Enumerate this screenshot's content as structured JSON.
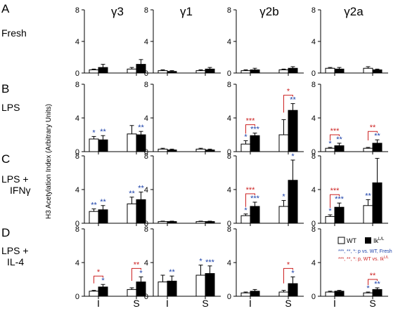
{
  "columns": [
    "γ3",
    "γ1",
    "γ2b",
    "γ2a"
  ],
  "rows": [
    {
      "letter": "A",
      "label": [
        "Fresh"
      ]
    },
    {
      "letter": "B",
      "label": [
        "LPS"
      ]
    },
    {
      "letter": "C",
      "label": [
        "LPS +",
        "IFNγ"
      ]
    },
    {
      "letter": "D",
      "label": [
        "LPS +",
        "IL-4"
      ]
    }
  ],
  "ylabel": "H3 Acetylation Index (Arbitrary Units)",
  "ylim": [
    0,
    8
  ],
  "yticks": [
    "0",
    "4",
    "8"
  ],
  "xcategories": [
    "I",
    "S"
  ],
  "colors": {
    "wt": "#ffffff",
    "ik": "#000000",
    "blue_sig": "#1a3fa8",
    "red_sig": "#cc2222"
  },
  "legend": {
    "wt": "WT",
    "ik_main": "Ik",
    "ik_sup": "L/L",
    "note_blue": "***, **, *: p vs. WT, Fresh",
    "note_red_prefix": "***, **, *: p, WT vs. Ik",
    "note_red_sup": "L/L"
  },
  "chart_data": {
    "type": "bar",
    "categories": [
      "I",
      "S"
    ],
    "panels": [
      [
        {
          "wt": [
            0.4,
            0.5
          ],
          "ik": [
            0.7,
            1.1
          ],
          "wt_err": [
            0.1,
            0.2
          ],
          "ik_err": [
            0.4,
            0.6
          ],
          "blue": [
            [
              "",
              ""
            ],
            [
              "",
              ""
            ]
          ],
          "red": [
            "",
            ""
          ]
        },
        {
          "wt": [
            0.3,
            0.3
          ],
          "ik": [
            0.2,
            0.5
          ],
          "wt_err": [
            0.1,
            0.1
          ],
          "ik_err": [
            0.1,
            0.2
          ],
          "blue": [
            [
              "",
              ""
            ],
            [
              "",
              ""
            ]
          ],
          "red": [
            "",
            ""
          ]
        },
        {
          "wt": [
            0.3,
            0.4
          ],
          "ik": [
            0.4,
            0.6
          ],
          "wt_err": [
            0.1,
            0.1
          ],
          "ik_err": [
            0.2,
            0.2
          ],
          "blue": [
            [
              "",
              ""
            ],
            [
              "",
              ""
            ]
          ],
          "red": [
            "",
            ""
          ]
        },
        {
          "wt": [
            0.6,
            0.6
          ],
          "ik": [
            0.5,
            0.4
          ],
          "wt_err": [
            0.1,
            0.2
          ],
          "ik_err": [
            0.2,
            0.1
          ],
          "blue": [
            [
              "",
              ""
            ],
            [
              "",
              ""
            ]
          ],
          "red": [
            "",
            ""
          ]
        }
      ],
      [
        {
          "wt": [
            1.5,
            2.1
          ],
          "ik": [
            1.4,
            2.0
          ],
          "wt_err": [
            0.3,
            1.0
          ],
          "ik_err": [
            0.5,
            0.4
          ],
          "blue": [
            [
              "*",
              "**"
            ],
            [
              "",
              "**"
            ]
          ],
          "red": [
            "",
            ""
          ]
        },
        {
          "wt": [
            0.3,
            0.3
          ],
          "ik": [
            0.2,
            0.2
          ],
          "wt_err": [
            0.1,
            0.1
          ],
          "ik_err": [
            0.1,
            0.1
          ],
          "blue": [
            [
              "",
              ""
            ],
            [
              "",
              ""
            ]
          ],
          "red": [
            "",
            ""
          ]
        },
        {
          "wt": [
            0.9,
            2.0
          ],
          "ik": [
            1.9,
            4.9
          ],
          "wt_err": [
            0.4,
            1.8
          ],
          "ik_err": [
            0.3,
            0.8
          ],
          "blue": [
            [
              "*",
              "***"
            ],
            [
              "",
              "**"
            ]
          ],
          "red": [
            "***",
            "*"
          ]
        },
        {
          "wt": [
            0.4,
            0.4
          ],
          "ik": [
            0.7,
            1.0
          ],
          "wt_err": [
            0.1,
            0.1
          ],
          "ik_err": [
            0.3,
            0.4
          ],
          "blue": [
            [
              "*",
              "**"
            ],
            [
              "",
              "**"
            ]
          ],
          "red": [
            "***",
            "**"
          ]
        }
      ],
      [
        {
          "wt": [
            1.4,
            2.3
          ],
          "ik": [
            1.6,
            2.8
          ],
          "wt_err": [
            0.3,
            0.8
          ],
          "ik_err": [
            0.5,
            0.9
          ],
          "blue": [
            [
              "**",
              "**"
            ],
            [
              "**",
              "**"
            ]
          ],
          "red": [
            "",
            ""
          ]
        },
        {
          "wt": [
            0.2,
            0.2
          ],
          "ik": [
            0.2,
            0.2
          ],
          "wt_err": [
            0.05,
            0.05
          ],
          "ik_err": [
            0.05,
            0.05
          ],
          "blue": [
            [
              "",
              ""
            ],
            [
              "",
              ""
            ]
          ],
          "red": [
            "",
            ""
          ]
        },
        {
          "wt": [
            0.9,
            2.0
          ],
          "ik": [
            2.0,
            5.1
          ],
          "wt_err": [
            0.2,
            0.7
          ],
          "ik_err": [
            0.5,
            2.4
          ],
          "blue": [
            [
              "*",
              "***"
            ],
            [
              "*",
              "*"
            ]
          ],
          "red": [
            "***",
            ""
          ]
        },
        {
          "wt": [
            0.8,
            2.1
          ],
          "ik": [
            1.9,
            4.8
          ],
          "wt_err": [
            0.2,
            0.7
          ],
          "ik_err": [
            0.5,
            2.9
          ],
          "blue": [
            [
              "*",
              "***"
            ],
            [
              "**",
              ""
            ]
          ],
          "red": [
            "***",
            ""
          ]
        }
      ],
      [
        {
          "wt": [
            0.6,
            0.8
          ],
          "ik": [
            1.1,
            1.7
          ],
          "wt_err": [
            0.1,
            0.2
          ],
          "ik_err": [
            0.3,
            0.6
          ],
          "blue": [
            [
              "",
              "*"
            ],
            [
              "",
              "*"
            ]
          ],
          "red": [
            "*",
            "**"
          ]
        },
        {
          "wt": [
            1.7,
            2.5
          ],
          "ik": [
            1.8,
            2.7
          ],
          "wt_err": [
            0.8,
            1.2
          ],
          "ik_err": [
            0.6,
            0.9
          ],
          "blue": [
            [
              "",
              "**"
            ],
            [
              "*",
              "***"
            ]
          ],
          "red": [
            "",
            ""
          ]
        },
        {
          "wt": [
            0.4,
            0.5
          ],
          "ik": [
            0.6,
            1.5
          ],
          "wt_err": [
            0.1,
            0.2
          ],
          "ik_err": [
            0.2,
            0.8
          ],
          "blue": [
            [
              "",
              ""
            ],
            [
              "",
              "*"
            ]
          ],
          "red": [
            "",
            "*"
          ]
        },
        {
          "wt": [
            0.5,
            0.4
          ],
          "ik": [
            0.6,
            0.8
          ],
          "wt_err": [
            0.1,
            0.1
          ],
          "ik_err": [
            0.1,
            0.2
          ],
          "blue": [
            [
              "",
              ""
            ],
            [
              "*",
              "**"
            ]
          ],
          "red": [
            "",
            "**"
          ]
        }
      ]
    ]
  }
}
